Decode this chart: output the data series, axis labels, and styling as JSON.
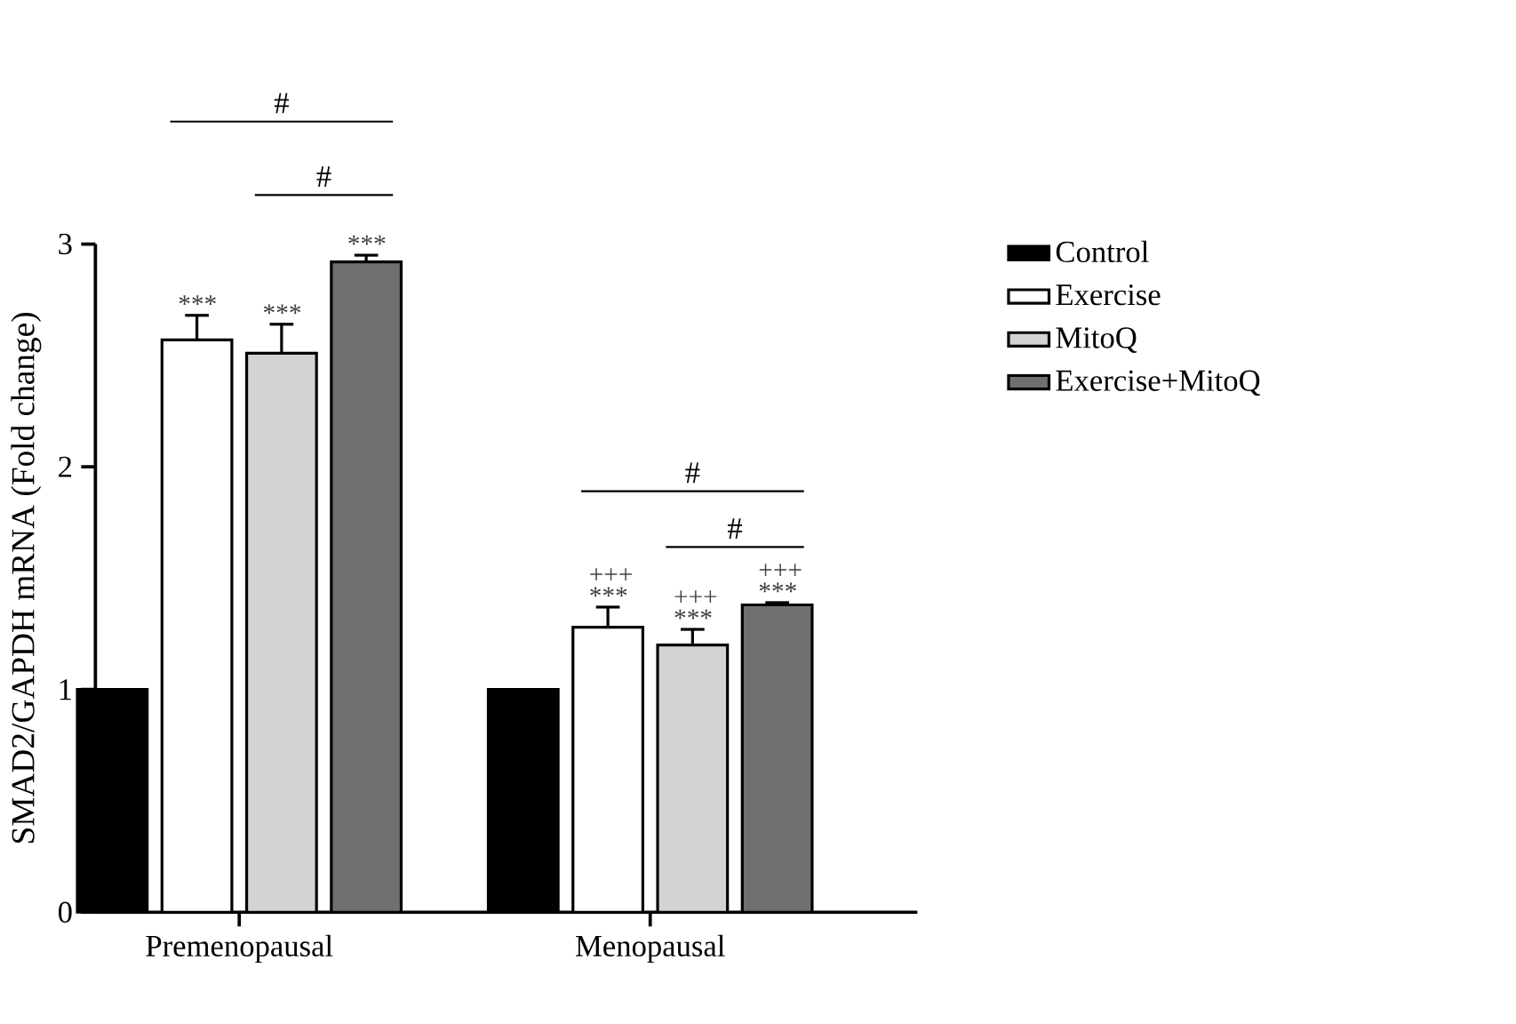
{
  "chart_data": {
    "type": "bar",
    "ylabel": "SMAD2/GAPDH mRNA (Fold change)",
    "categories": [
      "Premenopausal",
      "Menopausal"
    ],
    "series": [
      {
        "name": "Control",
        "color": "#000000",
        "values": [
          1,
          1
        ]
      },
      {
        "name": "Exercise",
        "color": "#ffffff",
        "values": [
          2.57,
          1.28
        ],
        "errors": [
          0.11,
          0.09
        ],
        "value_labels": [
          "***",
          "+++ ***"
        ]
      },
      {
        "name": "MitoQ",
        "color": "#d3d3d3",
        "values": [
          2.51,
          1.2
        ],
        "errors": [
          0.13,
          0.07
        ],
        "value_labels": [
          "***",
          "+++ ***"
        ]
      },
      {
        "name": "Exercise+MitoQ",
        "color": "#707070",
        "values": [
          2.92,
          1.38
        ],
        "errors": [
          0.03,
          0.01
        ],
        "value_labels": [
          "***",
          "+++ ***"
        ]
      }
    ],
    "ylim": [
      0,
      3
    ],
    "yticks": [
      0,
      1,
      2,
      3
    ],
    "grid": false,
    "legend": "right",
    "annotations": [
      "#",
      "#",
      "#",
      "#"
    ]
  }
}
